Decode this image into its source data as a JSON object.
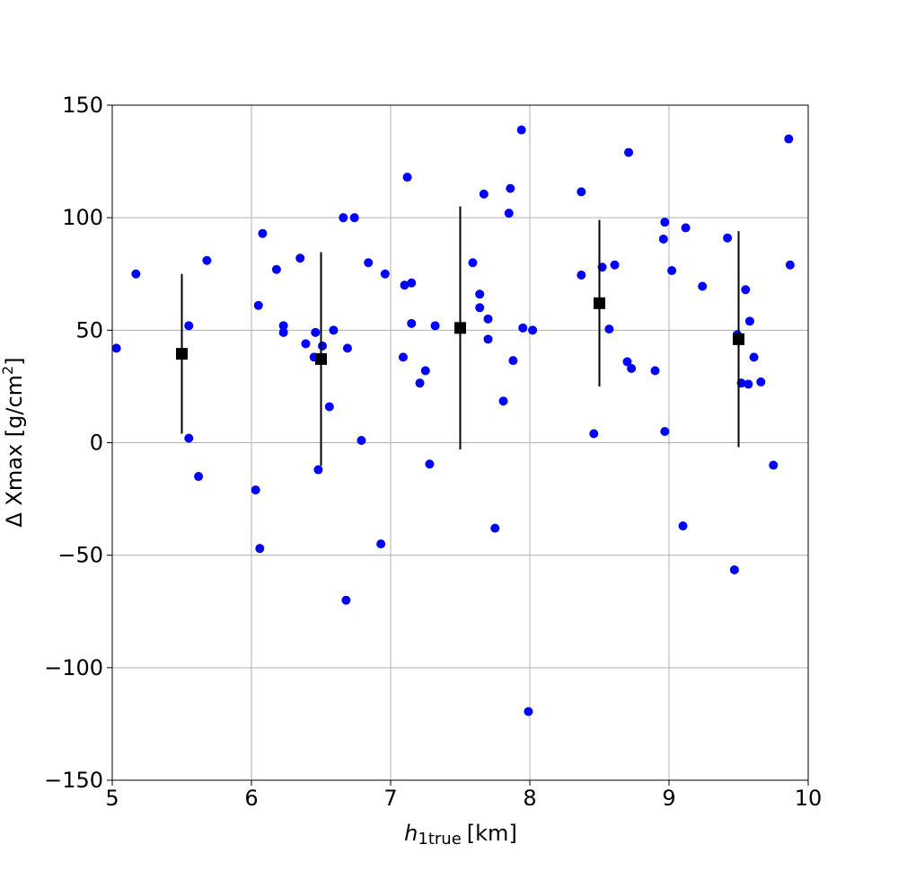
{
  "chart_data": {
    "type": "scatter",
    "x_label": {
      "base": "h",
      "sub": "1true",
      "unit": "[km]"
    },
    "y_label": {
      "base": "Δ Xmax [g/cm",
      "sup": "2",
      "end": "]"
    },
    "xlim": [
      5,
      10
    ],
    "ylim": [
      -150,
      150
    ],
    "xticks": [
      5,
      6,
      7,
      8,
      9,
      10
    ],
    "yticks": [
      {
        "value": -150,
        "label": "−150"
      },
      {
        "value": -100,
        "label": "−100"
      },
      {
        "value": -50,
        "label": "−50"
      },
      0,
      50,
      100,
      150
    ],
    "grid": true,
    "series": [
      {
        "color": "#0000ff",
        "marker": "circle",
        "x": [
          5.03,
          5.17,
          5.55,
          5.68,
          5.55,
          5.62,
          6.03,
          6.05,
          6.08,
          6.06,
          6.18,
          6.23,
          6.23,
          6.35,
          6.39,
          6.46,
          6.45,
          6.51,
          6.48,
          6.56,
          6.59,
          6.66,
          6.74,
          6.69,
          6.68,
          6.79,
          6.84,
          6.93,
          6.96,
          7.09,
          7.1,
          7.12,
          7.15,
          7.15,
          7.21,
          7.25,
          7.28,
          7.32,
          7.59,
          7.64,
          7.64,
          7.67,
          7.7,
          7.7,
          7.75,
          7.81,
          7.85,
          7.86,
          7.88,
          7.94,
          7.95,
          8.02,
          7.99,
          8.37,
          8.37,
          8.46,
          8.52,
          8.57,
          8.61,
          8.71,
          8.7,
          8.73,
          8.9,
          8.96,
          8.97,
          8.97,
          9.02,
          9.1,
          9.12,
          9.24,
          9.42,
          9.47,
          9.49,
          9.52,
          9.55,
          9.57,
          9.58,
          9.61,
          9.66,
          9.75,
          9.86,
          9.87
        ],
        "values": [
          42,
          75,
          52,
          81,
          2,
          -15,
          -21,
          61,
          93,
          -47,
          77,
          52,
          49,
          82,
          44,
          49,
          38,
          43,
          -12,
          16,
          50,
          100,
          100,
          42,
          -70,
          1,
          80,
          -45,
          75,
          38,
          70,
          118,
          71,
          53,
          26.5,
          32,
          -9.5,
          52,
          80,
          66,
          60,
          110.5,
          55,
          46,
          -38,
          18.5,
          102,
          113,
          36.5,
          139,
          51,
          50,
          -119.5,
          111.5,
          74.5,
          4,
          78,
          50.5,
          79,
          129,
          36,
          33,
          32,
          90.5,
          98,
          5,
          76.5,
          -37,
          95.5,
          69.5,
          91,
          -56.5,
          48,
          26.5,
          68,
          26,
          54,
          38,
          27,
          -10,
          135,
          79
        ]
      },
      {
        "color": "#000000",
        "marker": "square",
        "x": [
          5.5,
          6.5,
          7.5,
          8.5,
          9.5
        ],
        "values": [
          39.5,
          37.2,
          51,
          62,
          46
        ],
        "errors": [
          35.5,
          47.5,
          54,
          37,
          48
        ]
      }
    ]
  }
}
